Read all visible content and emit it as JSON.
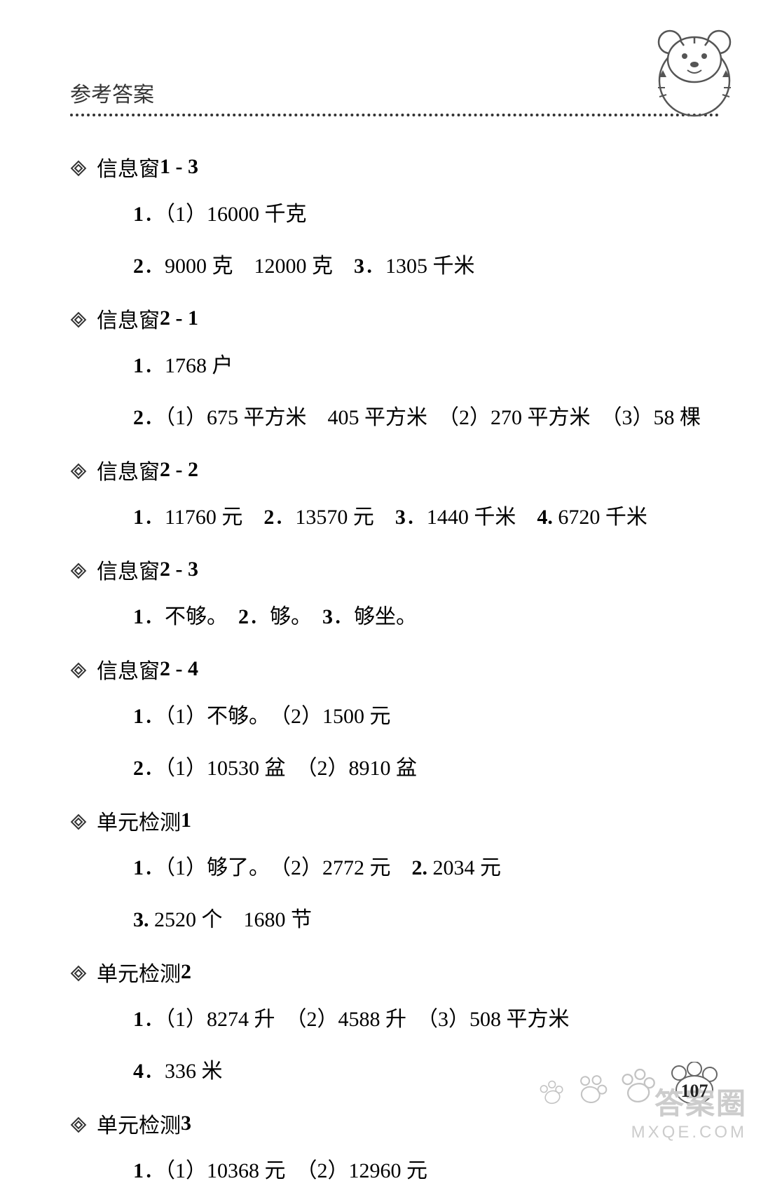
{
  "header": {
    "title": "参考答案"
  },
  "sections": [
    {
      "heading_text": "信息窗",
      "heading_num": "1 - 3",
      "lines": [
        {
          "num": "1",
          "text": "．（1）16000 千克"
        },
        {
          "num": "2",
          "text": "．9000 克　12000 克　",
          "num2": "3",
          "text2": "．1305 千米"
        }
      ]
    },
    {
      "heading_text": "信息窗",
      "heading_num": "2 - 1",
      "lines": [
        {
          "num": "1",
          "text": "．1768 户"
        },
        {
          "num": "2",
          "text": "．（1）675 平方米　405 平方米　（2）270 平方米　（3）58 棵"
        }
      ]
    },
    {
      "heading_text": "信息窗",
      "heading_num": "2 - 2",
      "lines": [
        {
          "num": "1",
          "text": "．11760 元　",
          "num2": "2",
          "text2": "．13570 元　",
          "num3": "3",
          "text3": "．1440 千米　",
          "num4": "4.",
          "text4": " 6720 千米"
        }
      ]
    },
    {
      "heading_text": "信息窗",
      "heading_num": "2 - 3",
      "lines": [
        {
          "num": "1",
          "text": "．不够。　",
          "num2": "2",
          "text2": "．够。　",
          "num3": "3",
          "text3": "．够坐。"
        }
      ]
    },
    {
      "heading_text": "信息窗",
      "heading_num": "2 - 4",
      "lines": [
        {
          "num": "1",
          "text": "．（1）不够。　（2）1500 元"
        },
        {
          "num": "2",
          "text": "．（1）10530 盆　（2）8910 盆"
        }
      ]
    },
    {
      "heading_text": "单元检测",
      "heading_num": "1",
      "lines": [
        {
          "num": "1",
          "text": "．（1）够了。　（2）2772 元　",
          "num2": "2.",
          "text2": " 2034 元"
        },
        {
          "num": "3.",
          "text": " 2520 个　1680 节"
        }
      ]
    },
    {
      "heading_text": "单元检测",
      "heading_num": "2",
      "lines": [
        {
          "num": "1",
          "text": "．（1）8274 升　（2）4588 升　（3）508 平方米"
        },
        {
          "num": "4",
          "text": "．336 米"
        }
      ]
    },
    {
      "heading_text": "单元检测",
      "heading_num": "3",
      "lines": [
        {
          "num": "1",
          "text": "．（1）10368 元　（2）12960 元"
        }
      ]
    }
  ],
  "page_number": "107",
  "watermark": {
    "line1": "答案圈",
    "line2": "MXQE.COM"
  },
  "colors": {
    "background": "#ffffff",
    "text": "#000000",
    "header_text": "#333333",
    "dotted": "#333333",
    "watermark": "#cccccc"
  }
}
